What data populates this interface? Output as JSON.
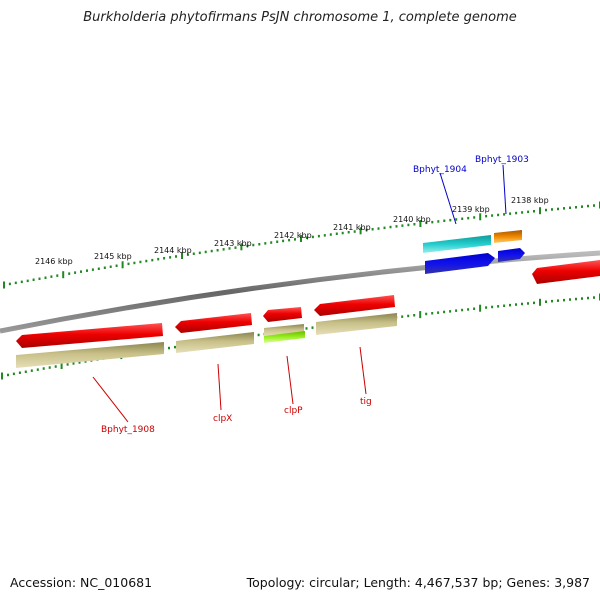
{
  "title": "Burkholderia phytofirmans PsJN chromosome 1, complete genome",
  "footer": {
    "accession": "Accession: NC_010681",
    "summary": "Topology: circular; Length: 4,467,537 bp; Genes: 3,987"
  },
  "scale_labels": [
    "2138 kbp",
    "2139 kbp",
    "2140 kbp",
    "2141 kbp",
    "2142 kbp",
    "2143 kbp",
    "2144 kbp",
    "2145 kbp",
    "2146 kbp"
  ],
  "gene_labels": {
    "bphyt_1908": "Bphyt_1908",
    "clpx": "clpX",
    "clpp": "clpP",
    "tig": "tig",
    "bphyt_1904": "Bphyt_1904",
    "bphyt_1903": "Bphyt_1903"
  },
  "colors": {
    "red": "#ee0000",
    "khaki": "#c8c088",
    "cyan": "#22cccc",
    "orange": "#ee8800",
    "blue": "#1111ee",
    "lime": "#99ee22",
    "tick": "#228822",
    "backbone": "#888888",
    "label_red": "#cc0000",
    "label_blue": "#0000cc"
  }
}
